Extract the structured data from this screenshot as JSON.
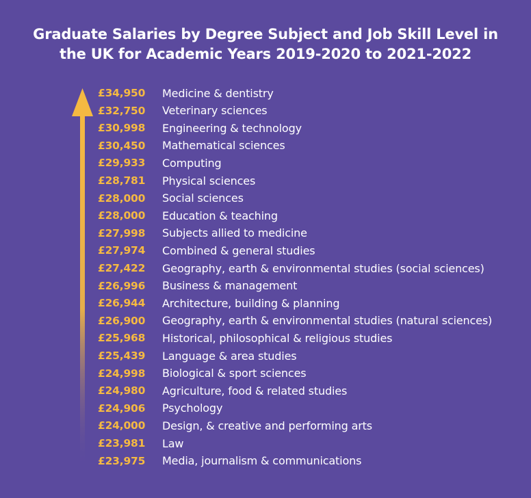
{
  "chart_data": {
    "type": "table",
    "title_lines": [
      "Graduate Salaries by Degree Subject and Job Skill Level in",
      "the UK for Academic Years 2019-2020 to 2021-2022"
    ],
    "colors": {
      "background": "#5b4a9e",
      "value_text": "#f5b942",
      "label_text": "#ffffff",
      "arrow_top": "#f5b942",
      "arrow_bottom": "#5b4a9e"
    },
    "rows": [
      {
        "value": "£34,950",
        "amount": 34950,
        "subject": "Medicine & dentistry"
      },
      {
        "value": "£32,750",
        "amount": 32750,
        "subject": "Veterinary sciences"
      },
      {
        "value": "£30,998",
        "amount": 30998,
        "subject": "Engineering & technology"
      },
      {
        "value": "£30,450",
        "amount": 30450,
        "subject": "Mathematical sciences"
      },
      {
        "value": "£29,933",
        "amount": 29933,
        "subject": "Computing"
      },
      {
        "value": "£28,781",
        "amount": 28781,
        "subject": "Physical sciences"
      },
      {
        "value": "£28,000",
        "amount": 28000,
        "subject": "Social sciences"
      },
      {
        "value": "£28,000",
        "amount": 28000,
        "subject": "Education & teaching"
      },
      {
        "value": "£27,998",
        "amount": 27998,
        "subject": "Subjects allied to medicine"
      },
      {
        "value": "£27,974",
        "amount": 27974,
        "subject": "Combined & general studies"
      },
      {
        "value": "£27,422",
        "amount": 27422,
        "subject": "Geography, earth & environmental studies (social sciences)"
      },
      {
        "value": "£26,996",
        "amount": 26996,
        "subject": "Business & management"
      },
      {
        "value": "£26,944",
        "amount": 26944,
        "subject": "Architecture, building & planning"
      },
      {
        "value": "£26,900",
        "amount": 26900,
        "subject": "Geography, earth & environmental studies (natural sciences)"
      },
      {
        "value": "£25,968",
        "amount": 25968,
        "subject": "Historical, philosophical & religious studies"
      },
      {
        "value": "£25,439",
        "amount": 25439,
        "subject": "Language & area studies"
      },
      {
        "value": "£24,998",
        "amount": 24998,
        "subject": "Biological & sport sciences"
      },
      {
        "value": "£24,980",
        "amount": 24980,
        "subject": "Agriculture, food & related studies"
      },
      {
        "value": "£24,906",
        "amount": 24906,
        "subject": "Psychology"
      },
      {
        "value": "£24,000",
        "amount": 24000,
        "subject": "Design, & creative and performing arts"
      },
      {
        "value": "£23,981",
        "amount": 23981,
        "subject": "Law"
      },
      {
        "value": "£23,975",
        "amount": 23975,
        "subject": "Media, journalism & communications"
      }
    ]
  }
}
